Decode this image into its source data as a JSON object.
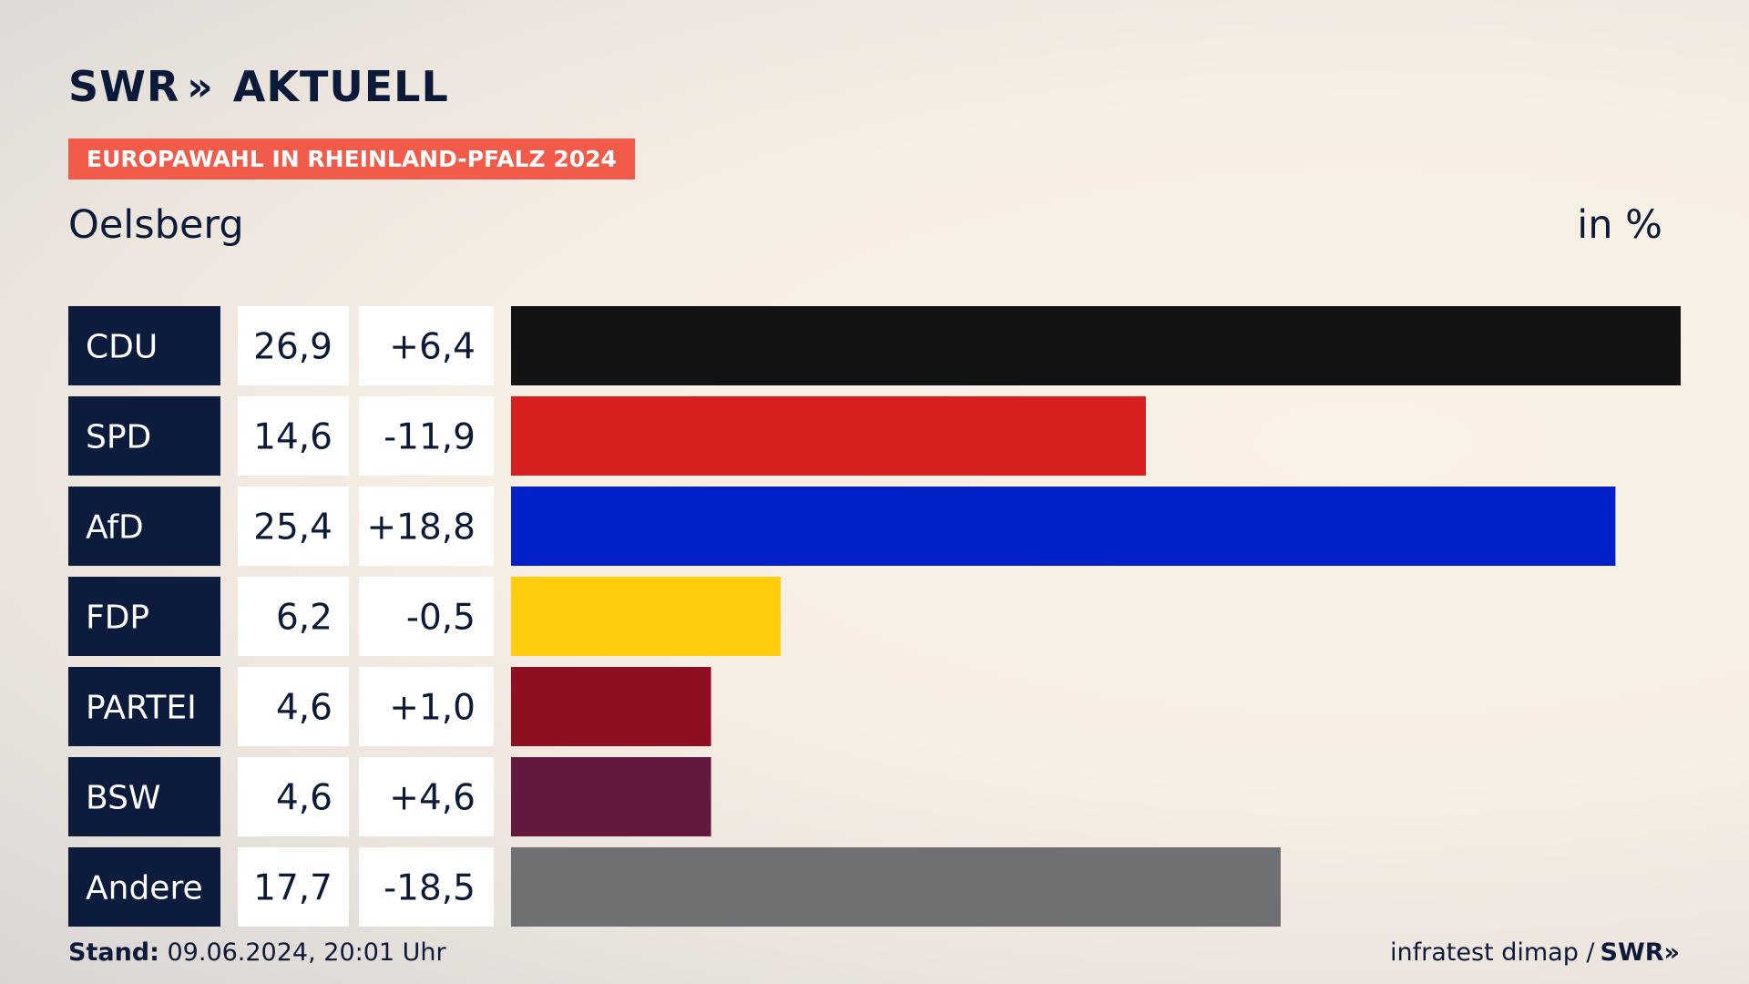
{
  "header": {
    "logo_text": "SWR",
    "logo_chevrons": "»",
    "logo_suffix": "AKTUELL",
    "tag": "EUROPAWAHL IN RHEINLAND-PFALZ 2024",
    "region": "Oelsberg",
    "unit": "in %"
  },
  "footer": {
    "stand_label": "Stand:",
    "stand_value": " 09.06.2024, 20:01 Uhr",
    "source": "infratest dimap /",
    "source_logo": "SWR»"
  },
  "colors": {
    "label_bg": "#0d1b3d",
    "value_bg": "#ffffff",
    "tag_bg": "#f25a4a"
  },
  "chart_data": {
    "type": "bar",
    "orientation": "horizontal",
    "categories": [
      "CDU",
      "SPD",
      "AfD",
      "FDP",
      "PARTEI",
      "BSW",
      "Andere"
    ],
    "values": [
      26.9,
      14.6,
      25.4,
      6.2,
      4.6,
      4.6,
      17.7
    ],
    "value_labels": [
      "26,9",
      "14,6",
      "25,4",
      "6,2",
      "4,6",
      "4,6",
      "17,7"
    ],
    "change_labels": [
      "+6,4",
      "-11,9",
      "+18,8",
      "-0,5",
      "+1,0",
      "+4,6",
      "-18,5"
    ],
    "changes": [
      6.4,
      -11.9,
      18.8,
      -0.5,
      1.0,
      4.6,
      -18.5
    ],
    "bar_colors": [
      "#131313",
      "#d71f1f",
      "#0020c8",
      "#ffcd0b",
      "#8c1022",
      "#63183f",
      "#6f7072"
    ],
    "xlim": [
      0,
      26.9
    ],
    "grid": false,
    "legend": "none"
  }
}
